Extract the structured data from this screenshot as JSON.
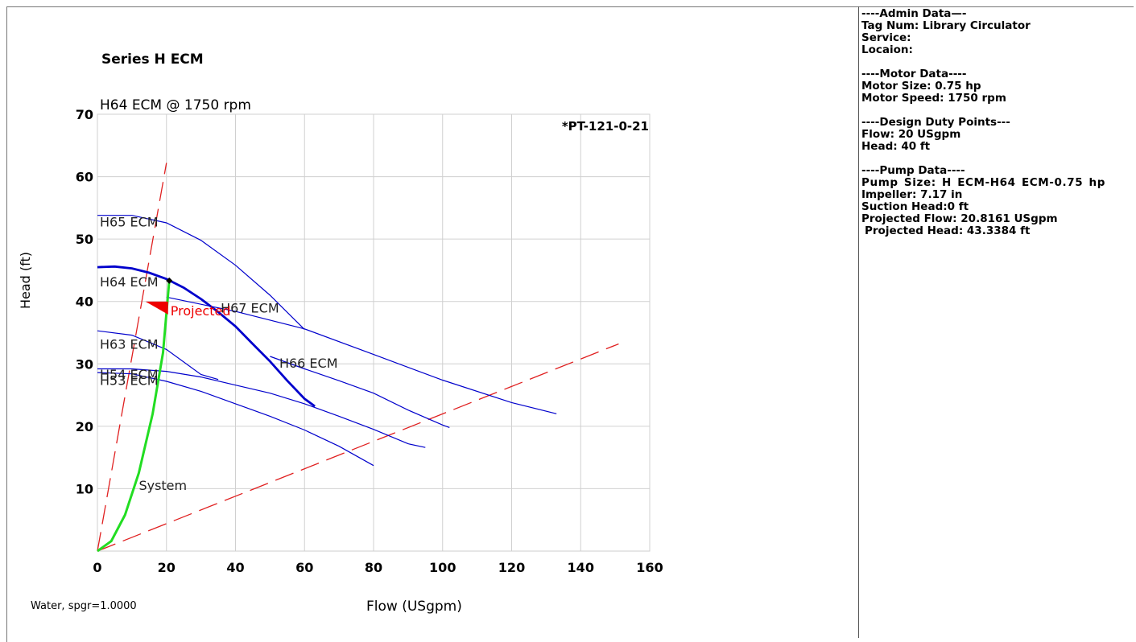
{
  "series_title": "Series H ECM",
  "footer_note": "Water, spgr=1.0000",
  "sidebar": {
    "sections": [
      {
        "lines": [
          "----Admin Data—-",
          "Tag Num: Library Circulator",
          "Service:",
          "Locaion:"
        ]
      },
      {
        "lines": [
          "----Motor Data----",
          "Motor Size: 0.75 hp",
          "Motor Speed: 1750 rpm"
        ]
      },
      {
        "lines": [
          "----Design Duty Points---",
          "Flow: 20 USgpm",
          "Head: 40 ft"
        ]
      },
      {
        "lines": [
          "----Pump Data----",
          "Pump Size: H ECM-H64 ECM-0.75 hp",
          "Impeller: 7.17 in",
          "Suction Head:0 ft",
          "Projected Flow: 20.8161 USgpm",
          "Projected Head: 43.3384 ft"
        ]
      }
    ]
  },
  "chart_data": {
    "type": "line",
    "title": "H64 ECM @ 1750 rpm",
    "annotation_top_right": "*PT-121-0-21",
    "xlabel": "Flow (USgpm)",
    "ylabel": "Head (ft)",
    "xlim": [
      0,
      160
    ],
    "ylim": [
      0,
      70
    ],
    "xticks": [
      0,
      20,
      40,
      60,
      80,
      100,
      120,
      140,
      160
    ],
    "yticks": [
      10,
      20,
      30,
      40,
      50,
      60,
      70
    ],
    "grid": true,
    "colors": {
      "pump": "#0000cc",
      "system": "#22dd22",
      "limit": "#e02020",
      "projected": "#ee0000"
    },
    "series": [
      {
        "name": "H65 ECM",
        "label_at": [
          0,
          52
        ],
        "points": [
          [
            0,
            53.8
          ],
          [
            10,
            53.8
          ],
          [
            20,
            52.6
          ],
          [
            30,
            49.8
          ],
          [
            40,
            45.8
          ],
          [
            50,
            41
          ],
          [
            60,
            35.5
          ]
        ]
      },
      {
        "name": "H64 ECM",
        "highlight": true,
        "label_at": [
          0,
          42.4
        ],
        "points": [
          [
            0,
            45.5
          ],
          [
            5,
            45.6
          ],
          [
            10,
            45.3
          ],
          [
            15,
            44.6
          ],
          [
            20,
            43.6
          ],
          [
            25,
            42.2
          ],
          [
            30,
            40.4
          ],
          [
            35,
            38.3
          ],
          [
            40,
            36
          ],
          [
            45,
            33.2
          ],
          [
            50,
            30.4
          ],
          [
            55,
            27.3
          ],
          [
            60,
            24.4
          ],
          [
            63,
            23.2
          ]
        ]
      },
      {
        "name": "H67 ECM",
        "label_at": [
          35,
          38.2
        ],
        "points": [
          [
            20,
            40.7
          ],
          [
            40,
            38.4
          ],
          [
            60,
            35.6
          ],
          [
            80,
            31.5
          ],
          [
            100,
            27.4
          ],
          [
            120,
            23.8
          ],
          [
            133,
            22
          ]
        ]
      },
      {
        "name": "H66 ECM",
        "label_at": [
          52,
          29.4
        ],
        "points": [
          [
            50,
            31.2
          ],
          [
            60,
            29.2
          ],
          [
            70,
            27.3
          ],
          [
            80,
            25.3
          ],
          [
            90,
            22.6
          ],
          [
            100,
            20.2
          ],
          [
            102,
            19.8
          ]
        ]
      },
      {
        "name": "H63 ECM",
        "label_at": [
          0,
          32.4
        ],
        "points": [
          [
            0,
            35.3
          ],
          [
            10,
            34.6
          ],
          [
            20,
            32.3
          ],
          [
            30,
            28.3
          ],
          [
            35,
            27.5
          ]
        ]
      },
      {
        "name": "H54 ECM",
        "label_at": [
          0,
          27.6
        ],
        "points": [
          [
            0,
            29.2
          ],
          [
            10,
            29.2
          ],
          [
            20,
            28.8
          ],
          [
            30,
            27.9
          ],
          [
            40,
            26.6
          ],
          [
            50,
            25.3
          ],
          [
            60,
            23.6
          ],
          [
            70,
            21.6
          ],
          [
            80,
            19.5
          ],
          [
            90,
            17.2
          ],
          [
            95,
            16.6
          ]
        ]
      },
      {
        "name": "H53 ECM",
        "label_at": [
          0,
          26.6
        ],
        "points": [
          [
            0,
            28.6
          ],
          [
            10,
            28.4
          ],
          [
            20,
            27.2
          ],
          [
            30,
            25.6
          ],
          [
            40,
            23.6
          ],
          [
            50,
            21.6
          ],
          [
            60,
            19.4
          ],
          [
            70,
            16.8
          ],
          [
            80,
            13.7
          ]
        ]
      }
    ],
    "system_curve": {
      "name": "System",
      "label_at": [
        12,
        9.8
      ],
      "points": [
        [
          0,
          0
        ],
        [
          4,
          1.6
        ],
        [
          8,
          5.8
        ],
        [
          12,
          12.5
        ],
        [
          16,
          22
        ],
        [
          19,
          31.8
        ],
        [
          20.8,
          43.3
        ]
      ]
    },
    "limit_lines": [
      {
        "from": [
          0,
          0
        ],
        "to": [
          20,
          62.2
        ]
      },
      {
        "from": [
          0,
          0
        ],
        "to": [
          151,
          33.2
        ]
      }
    ],
    "projected": {
      "label": "Projected",
      "flow": 20.8161,
      "head": 43.3384,
      "marker_at": [
        20,
        39.6
      ]
    }
  }
}
